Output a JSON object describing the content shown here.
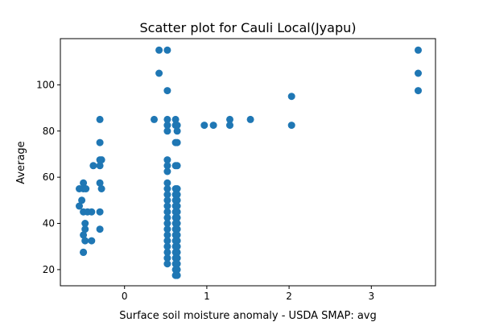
{
  "chart_data": {
    "type": "scatter",
    "title": "Scatter plot for Cauli Local(Jyapu)",
    "xlabel": "Surface soil moisture anomaly  - USDA SMAP: avg",
    "ylabel": "Average",
    "xlim": [
      -0.78,
      3.78
    ],
    "ylim": [
      13,
      120
    ],
    "xticks": [
      0,
      1,
      2,
      3
    ],
    "yticks": [
      20,
      40,
      60,
      80,
      100
    ],
    "grid": false,
    "marker_color": "#1f77b4",
    "points": [
      [
        -0.55,
        55
      ],
      [
        -0.55,
        47.5
      ],
      [
        -0.52,
        50
      ],
      [
        -0.5,
        57.5
      ],
      [
        -0.5,
        55
      ],
      [
        -0.47,
        55
      ],
      [
        -0.5,
        45
      ],
      [
        -0.45,
        45
      ],
      [
        -0.4,
        45
      ],
      [
        -0.48,
        40
      ],
      [
        -0.48,
        37.5
      ],
      [
        -0.5,
        35
      ],
      [
        -0.48,
        32.5
      ],
      [
        -0.4,
        32.5
      ],
      [
        -0.5,
        27.5
      ],
      [
        -0.5,
        27.5
      ],
      [
        -0.38,
        65
      ],
      [
        -0.3,
        85
      ],
      [
        -0.3,
        75
      ],
      [
        -0.3,
        67.5
      ],
      [
        -0.28,
        67.5
      ],
      [
        -0.3,
        65
      ],
      [
        -0.3,
        57.5
      ],
      [
        -0.28,
        55
      ],
      [
        -0.3,
        45
      ],
      [
        -0.3,
        37.5
      ],
      [
        0.36,
        85
      ],
      [
        0.42,
        115
      ],
      [
        0.42,
        105
      ],
      [
        0.52,
        115
      ],
      [
        0.52,
        97.5
      ],
      [
        0.52,
        85
      ],
      [
        0.52,
        82.5
      ],
      [
        0.52,
        80
      ],
      [
        0.52,
        67.5
      ],
      [
        0.52,
        65
      ],
      [
        0.52,
        62.5
      ],
      [
        0.52,
        57.5
      ],
      [
        0.52,
        55
      ],
      [
        0.52,
        52.5
      ],
      [
        0.52,
        50
      ],
      [
        0.52,
        47.5
      ],
      [
        0.52,
        45
      ],
      [
        0.52,
        42.5
      ],
      [
        0.52,
        40
      ],
      [
        0.52,
        37.5
      ],
      [
        0.52,
        35
      ],
      [
        0.52,
        32.5
      ],
      [
        0.52,
        30
      ],
      [
        0.52,
        27.5
      ],
      [
        0.52,
        25
      ],
      [
        0.52,
        22.5
      ],
      [
        0.62,
        85
      ],
      [
        0.62,
        82.5
      ],
      [
        0.62,
        75
      ],
      [
        0.62,
        65
      ],
      [
        0.62,
        55
      ],
      [
        0.62,
        52.5
      ],
      [
        0.62,
        50
      ],
      [
        0.62,
        47.5
      ],
      [
        0.62,
        45
      ],
      [
        0.62,
        42.5
      ],
      [
        0.62,
        40
      ],
      [
        0.62,
        37.5
      ],
      [
        0.62,
        35
      ],
      [
        0.62,
        32.5
      ],
      [
        0.62,
        30
      ],
      [
        0.62,
        27.5
      ],
      [
        0.62,
        25
      ],
      [
        0.62,
        22.5
      ],
      [
        0.62,
        20
      ],
      [
        0.62,
        17.5
      ],
      [
        0.64,
        82.5
      ],
      [
        0.64,
        80
      ],
      [
        0.64,
        75
      ],
      [
        0.64,
        65
      ],
      [
        0.64,
        55
      ],
      [
        0.64,
        52.5
      ],
      [
        0.64,
        50
      ],
      [
        0.64,
        47.5
      ],
      [
        0.64,
        45
      ],
      [
        0.64,
        42.5
      ],
      [
        0.64,
        40
      ],
      [
        0.64,
        37.5
      ],
      [
        0.64,
        35
      ],
      [
        0.64,
        32.5
      ],
      [
        0.64,
        30
      ],
      [
        0.64,
        27.5
      ],
      [
        0.64,
        25
      ],
      [
        0.64,
        22.5
      ],
      [
        0.64,
        20
      ],
      [
        0.64,
        17.5
      ],
      [
        0.97,
        82.5
      ],
      [
        1.08,
        82.5
      ],
      [
        1.28,
        85
      ],
      [
        1.28,
        82.5
      ],
      [
        1.53,
        85
      ],
      [
        2.03,
        95
      ],
      [
        2.03,
        82.5
      ],
      [
        3.57,
        115
      ],
      [
        3.57,
        105
      ],
      [
        3.57,
        97.5
      ]
    ]
  }
}
